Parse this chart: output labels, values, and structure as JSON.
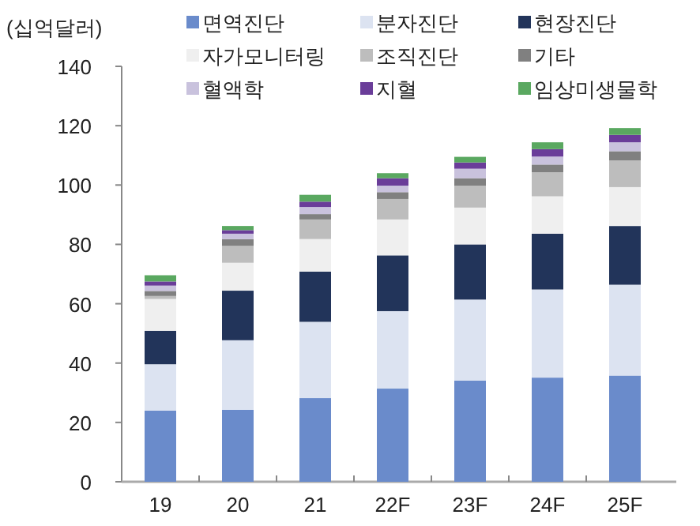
{
  "chart_data": {
    "type": "bar",
    "stacked": true,
    "ylabel": "(십억달러)",
    "categories": [
      "19",
      "20",
      "21",
      "22F",
      "23F",
      "24F",
      "25F"
    ],
    "ylim": [
      0,
      140
    ],
    "yticks": [
      0,
      20,
      40,
      60,
      80,
      100,
      120,
      140
    ],
    "grid": false,
    "legend": "top",
    "series": [
      {
        "name": "면역진단",
        "color": "#6a8bcb",
        "values": [
          24,
          24.3,
          28.2,
          31.4,
          34.1,
          35.1,
          35.8
        ]
      },
      {
        "name": "분자진단",
        "color": "#dce3f1",
        "values": [
          15.6,
          23.4,
          25.7,
          26.1,
          27.3,
          29.7,
          30.6
        ]
      },
      {
        "name": "현장진단",
        "color": "#22345a",
        "values": [
          11.3,
          16.7,
          16.9,
          18.8,
          18.6,
          18.8,
          19.8
        ]
      },
      {
        "name": "자가모니터링",
        "color": "#efefef",
        "values": [
          10.7,
          9.4,
          11,
          12.1,
          12.4,
          12.6,
          13.1
        ]
      },
      {
        "name": "조직진단",
        "color": "#bdbdbd",
        "values": [
          1.0,
          5.7,
          6.6,
          6.9,
          7.4,
          8.1,
          9
        ]
      },
      {
        "name": "기타",
        "color": "#808080",
        "values": [
          1.7,
          2.3,
          1.8,
          2.3,
          2.5,
          2.6,
          3.1
        ]
      },
      {
        "name": "혈액학",
        "color": "#c9c2dd",
        "values": [
          1.8,
          1.8,
          2.4,
          2.2,
          3.2,
          2.7,
          3
        ]
      },
      {
        "name": "지혈",
        "color": "#6a3d99",
        "values": [
          1.4,
          1.2,
          1.8,
          2.5,
          2.1,
          2.5,
          2.5
        ]
      },
      {
        "name": "임상미생물학",
        "color": "#5aa860",
        "values": [
          2.1,
          1.4,
          2.3,
          1.7,
          1.9,
          2.3,
          2.3
        ]
      }
    ]
  }
}
